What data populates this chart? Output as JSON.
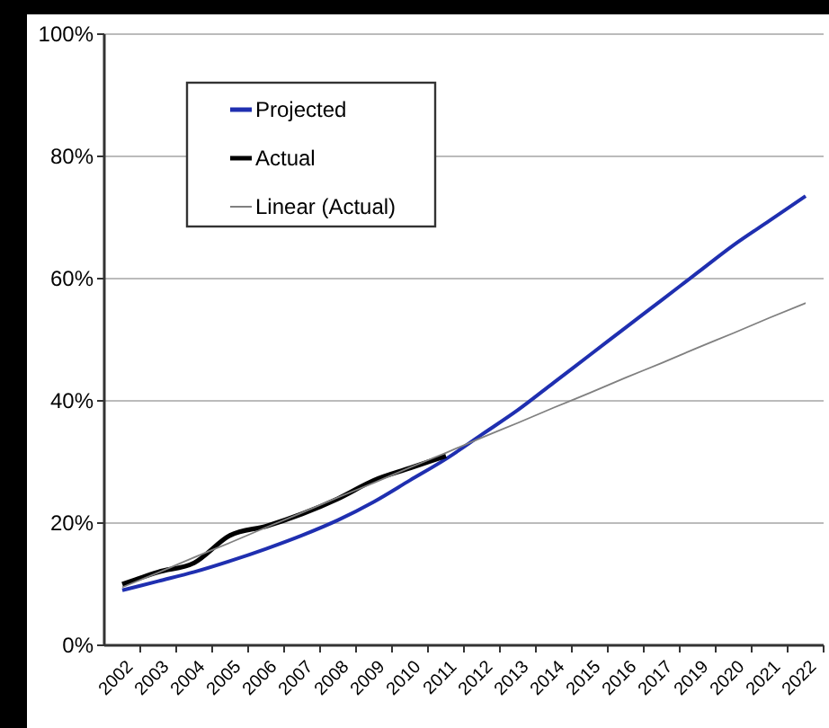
{
  "chart_data": {
    "type": "line",
    "categories": [
      "2002",
      "2003",
      "2004",
      "2005",
      "2006",
      "2007",
      "2008",
      "2009",
      "2010",
      "2011",
      "2012",
      "2013",
      "2014",
      "2015",
      "2016",
      "2017",
      "2019",
      "2020",
      "2021",
      "2022"
    ],
    "series": [
      {
        "name": "Projected",
        "color": "#1f2fb0",
        "values": [
          9,
          10.5,
          12,
          13.8,
          15.8,
          18,
          20.5,
          23.5,
          27,
          30.5,
          34.5,
          38.5,
          43,
          47.5,
          52,
          56.5,
          61,
          65.5,
          69.5,
          73.5
        ]
      },
      {
        "name": "Actual",
        "color": "#000000",
        "values": [
          10,
          12,
          13.5,
          18,
          19.5,
          21.5,
          24,
          27,
          29,
          31,
          null,
          null,
          null,
          null,
          null,
          null,
          null,
          null,
          null,
          null
        ]
      },
      {
        "name": "Linear (Actual)",
        "color": "#808080",
        "values": [
          9.5,
          11.9,
          14.4,
          16.8,
          19.3,
          21.7,
          24.2,
          26.6,
          29.1,
          31.5,
          34,
          36.4,
          38.9,
          41.3,
          43.8,
          46.2,
          48.7,
          51.1,
          53.6,
          56
        ]
      }
    ],
    "ylim": [
      0,
      100
    ],
    "yticks": [
      {
        "value": 0,
        "label": "0%"
      },
      {
        "value": 20,
        "label": "20%"
      },
      {
        "value": 40,
        "label": "40%"
      },
      {
        "value": 60,
        "label": "60%"
      },
      {
        "value": 80,
        "label": "80%"
      },
      {
        "value": 100,
        "label": "100%"
      }
    ],
    "grid": "y",
    "legend": "top left"
  }
}
